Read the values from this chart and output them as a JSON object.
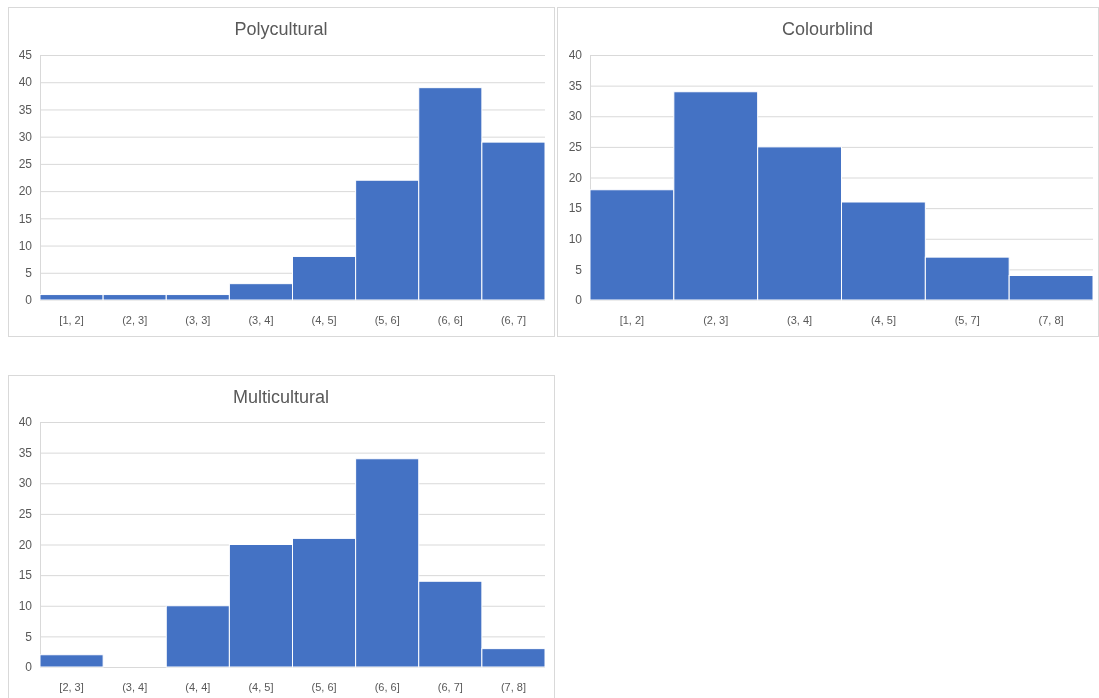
{
  "chart_data": [
    {
      "type": "bar",
      "title": "Polycultural",
      "categories": [
        "[1, 2]",
        "(2, 3]",
        "(3, 3]",
        "(3, 4]",
        "(4, 5]",
        "(5, 6]",
        "(6, 6]",
        "(6, 7]"
      ],
      "values": [
        1,
        1,
        1,
        3,
        8,
        22,
        39,
        29
      ],
      "color": "#4472c4",
      "ylim": [
        0,
        45
      ],
      "yticks": [
        0,
        5,
        10,
        15,
        20,
        25,
        30,
        35,
        40,
        45
      ],
      "grid": "y"
    },
    {
      "type": "bar",
      "title": "Colourblind",
      "categories": [
        "[1, 2]",
        "(2, 3]",
        "(3, 4]",
        "(4, 5]",
        "(5, 7]",
        "(7, 8]"
      ],
      "values": [
        18,
        34,
        25,
        16,
        7,
        4
      ],
      "color": "#4472c4",
      "ylim": [
        0,
        40
      ],
      "yticks": [
        0,
        5,
        10,
        15,
        20,
        25,
        30,
        35,
        40
      ],
      "grid": "y"
    },
    {
      "type": "bar",
      "title": "Multicultural",
      "categories": [
        "[2, 3]",
        "(3, 4]",
        "(4, 4]",
        "(4, 5]",
        "(5, 6]",
        "(6, 6]",
        "(6, 7]",
        "(7, 8]"
      ],
      "values": [
        2,
        0,
        10,
        20,
        21,
        34,
        14,
        3
      ],
      "color": "#4472c4",
      "ylim": [
        0,
        40
      ],
      "yticks": [
        0,
        5,
        10,
        15,
        20,
        25,
        30,
        35,
        40
      ],
      "grid": "y"
    }
  ]
}
